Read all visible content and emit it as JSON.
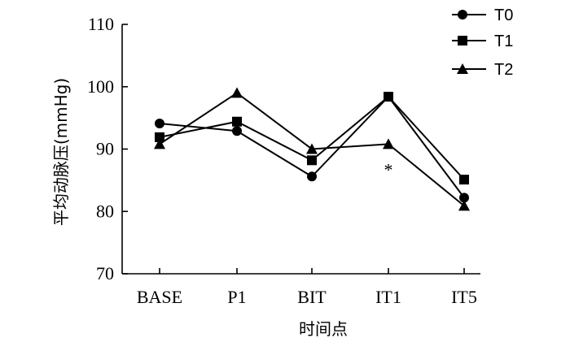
{
  "chart_data": {
    "type": "line",
    "title": "",
    "xlabel": "时间点",
    "ylabel": "平均动脉压(mmHg)",
    "categories": [
      "BASE",
      "P1",
      "BIT",
      "IT1",
      "IT5"
    ],
    "ylim": [
      70,
      110
    ],
    "yticks": [
      70,
      80,
      90,
      100,
      110
    ],
    "grid": false,
    "legend_position": "top-right",
    "series": [
      {
        "name": "T0",
        "marker": "circle",
        "values": [
          94.1,
          92.9,
          85.6,
          98.4,
          82.2
        ]
      },
      {
        "name": "T1",
        "marker": "square",
        "values": [
          91.9,
          94.4,
          88.2,
          98.4,
          85.1
        ]
      },
      {
        "name": "T2",
        "marker": "triangle",
        "values": [
          90.8,
          99.0,
          90.0,
          90.8,
          80.9
        ]
      }
    ],
    "annotations": [
      {
        "text": "*",
        "x": "IT1",
        "y": 87.5
      }
    ],
    "colors": {
      "line": "#000000",
      "marker": "#000000",
      "axis": "#000000",
      "background": "#ffffff"
    }
  }
}
